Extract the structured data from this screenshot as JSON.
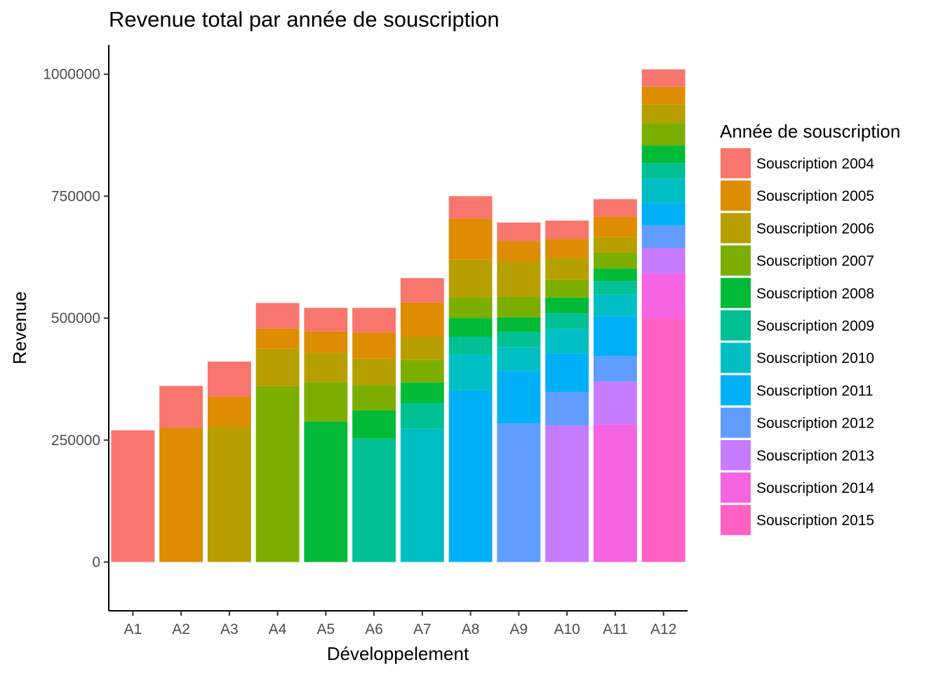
{
  "chart_data": {
    "type": "bar",
    "stacked": true,
    "title": "Revenue total par année de souscription",
    "xlabel": "Développelement",
    "ylabel": "Revenue",
    "ylim": [
      -100000,
      1060000
    ],
    "yticks": [
      0,
      250000,
      500000,
      750000,
      1000000
    ],
    "grid": false,
    "legend_position": "right",
    "legend_title": "Année de souscription",
    "categories": [
      "A1",
      "A2",
      "A3",
      "A4",
      "A5",
      "A6",
      "A7",
      "A8",
      "A9",
      "A10",
      "A11",
      "A12"
    ],
    "series": [
      {
        "name": "Souscription 2015",
        "color": "#FF61C3",
        "values": [
          0,
          0,
          0,
          0,
          0,
          0,
          0,
          0,
          0,
          0,
          0,
          500000
        ]
      },
      {
        "name": "Souscription 2014",
        "color": "#F564E3",
        "values": [
          0,
          0,
          0,
          0,
          0,
          0,
          0,
          0,
          0,
          0,
          282000,
          92000
        ]
      },
      {
        "name": "Souscription 2013",
        "color": "#C77CFF",
        "values": [
          0,
          0,
          0,
          0,
          0,
          0,
          0,
          0,
          0,
          280000,
          88000,
          52000
        ]
      },
      {
        "name": "Souscription 2012",
        "color": "#619CFF",
        "values": [
          0,
          0,
          0,
          0,
          0,
          0,
          0,
          0,
          284000,
          68000,
          52000,
          46000
        ]
      },
      {
        "name": "Souscription 2011",
        "color": "#00B0F6",
        "values": [
          0,
          0,
          0,
          0,
          0,
          0,
          0,
          352000,
          108000,
          80000,
          82000,
          46000
        ]
      },
      {
        "name": "Souscription 2010",
        "color": "#00BFC4",
        "values": [
          0,
          0,
          0,
          0,
          0,
          0,
          274000,
          74000,
          48000,
          50000,
          44000,
          50000
        ]
      },
      {
        "name": "Souscription 2009",
        "color": "#00C094",
        "values": [
          0,
          0,
          0,
          0,
          0,
          253000,
          52000,
          36000,
          32000,
          32000,
          28000,
          32000
        ]
      },
      {
        "name": "Souscription 2008",
        "color": "#00BA38",
        "values": [
          0,
          0,
          0,
          0,
          288000,
          58000,
          42000,
          38000,
          30000,
          32000,
          26000,
          36000
        ]
      },
      {
        "name": "Souscription 2007",
        "color": "#7CAE00",
        "values": [
          0,
          0,
          0,
          361000,
          81000,
          52000,
          46000,
          42000,
          42000,
          36000,
          32000,
          46000
        ]
      },
      {
        "name": "Souscription 2006",
        "color": "#B79F00",
        "values": [
          0,
          0,
          277000,
          76000,
          60000,
          54000,
          48000,
          78000,
          72000,
          46000,
          32000,
          38000
        ]
      },
      {
        "name": "Souscription 2005",
        "color": "#DE8C00",
        "values": [
          0,
          275000,
          62000,
          42000,
          44000,
          54000,
          70000,
          84000,
          42000,
          38000,
          42000,
          36000
        ]
      },
      {
        "name": "Souscription 2004",
        "color": "#F8766D",
        "values": [
          270000,
          86000,
          72000,
          52000,
          48000,
          50000,
          50000,
          46000,
          38000,
          38000,
          36000,
          36000
        ]
      }
    ]
  }
}
